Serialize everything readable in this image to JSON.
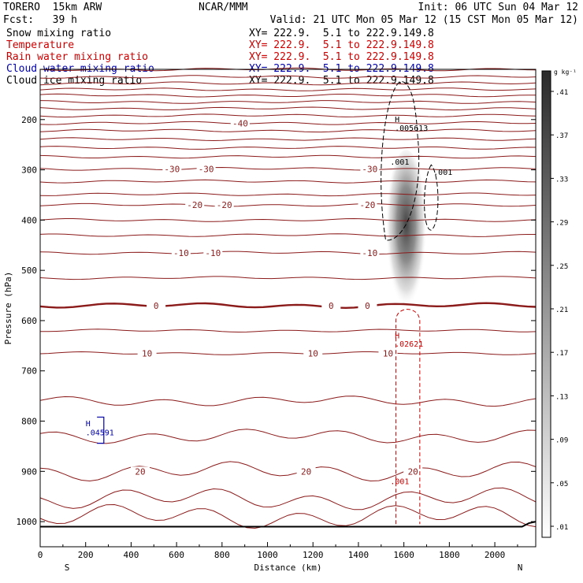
{
  "header": {
    "model": "TORERO  15km ARW",
    "center": "NCAR/MMM",
    "init": "Init: 06 UTC Sun 04 Mar 12",
    "fcst": "Fcst:   39 h",
    "valid": "Valid: 21 UTC Mon 05 Mar 12 (15 CST Mon 05 Mar 12)"
  },
  "fields": [
    {
      "name": "Snow mixing ratio",
      "xy": "XY= 222.9.  5.1 to 222.9.149.8",
      "color": "#000000"
    },
    {
      "name": "Temperature",
      "xy": "XY= 222.9.  5.1 to 222.9.149.8",
      "color": "#cc0000"
    },
    {
      "name": "Rain water mixing ratio",
      "xy": "XY= 222.9.  5.1 to 222.9.149.8",
      "color": "#cc0000"
    },
    {
      "name": "Cloud water mixing ratio",
      "xy": "XY= 222.9.  5.1 to 222.9.149.8",
      "color": "#0000aa"
    },
    {
      "name": "Cloud ice mixing ratio",
      "xy": "XY= 222.9.  5.1 to 222.9.149.8",
      "color": "#000000"
    }
  ],
  "chart_data": {
    "type": "line",
    "xlabel": "Distance (km)",
    "ylabel": "Pressure (hPa)",
    "xlim": [
      0,
      2180
    ],
    "ylim": [
      1050,
      100
    ],
    "xticks": [
      0,
      200,
      400,
      600,
      800,
      1000,
      1200,
      1400,
      1600,
      1800,
      2000
    ],
    "yticks": [
      200,
      300,
      400,
      500,
      600,
      700,
      800,
      900,
      1000
    ],
    "x_end_labels": {
      "left": "S",
      "right": "N"
    },
    "colorbar": {
      "unit": "g kg⁻¹",
      "ticks": [
        ".01",
        ".05",
        ".09",
        ".13",
        ".17",
        ".21",
        ".25",
        ".29",
        ".33",
        ".37",
        ".41"
      ]
    },
    "snow_core": {
      "x": 1610,
      "p_top": 260,
      "p_bottom": 590
    },
    "temperature_contours": {
      "color": "#8b1a1a",
      "zero_isotherm_p": 570,
      "levels": [
        {
          "p": 100
        },
        {
          "p": 115
        },
        {
          "p": 128
        },
        {
          "p": 140
        },
        {
          "p": 152
        },
        {
          "p": 165
        },
        {
          "p": 178
        },
        {
          "p": 192
        },
        {
          "p": 207,
          "label": "-40",
          "label_x": [
            880
          ]
        },
        {
          "p": 222
        },
        {
          "p": 239
        },
        {
          "p": 256
        },
        {
          "p": 274
        },
        {
          "p": 298,
          "label": "-30",
          "label_x": [
            580,
            730,
            1450
          ]
        },
        {
          "p": 323
        },
        {
          "p": 349
        },
        {
          "p": 370,
          "label": "-20",
          "label_x": [
            680,
            810,
            1440
          ]
        },
        {
          "p": 400
        },
        {
          "p": 430
        },
        {
          "p": 465,
          "label": "-10",
          "label_x": [
            620,
            760,
            1450
          ]
        },
        {
          "p": 515
        },
        {
          "p": 570,
          "label": "0",
          "label_x": [
            510,
            1280,
            1440
          ],
          "bold": true
        },
        {
          "p": 620
        },
        {
          "p": 665,
          "label": "10",
          "label_x": [
            470,
            1200,
            1530
          ]
        },
        {
          "p": 760
        },
        {
          "p": 830
        },
        {
          "p": 900,
          "label": "20",
          "label_x": [
            440,
            1170,
            1640
          ]
        },
        {
          "p": 955
        },
        {
          "p": 990
        }
      ]
    },
    "annotations": [
      {
        "text": "H",
        "x": 1560,
        "p": 205,
        "color": "#000000"
      },
      {
        "text": ".005613",
        "x": 1560,
        "p": 222,
        "color": "#000000"
      },
      {
        "text": ".001",
        "x": 1540,
        "p": 290,
        "color": "#000000"
      },
      {
        "text": ".001",
        "x": 1730,
        "p": 310,
        "color": "#000000"
      },
      {
        "text": "H",
        "x": 1560,
        "p": 635,
        "color": "#cc0000"
      },
      {
        "text": ".02621",
        "x": 1560,
        "p": 652,
        "color": "#cc0000"
      },
      {
        "text": ".001",
        "x": 1540,
        "p": 925,
        "color": "#cc0000"
      },
      {
        "text": "H",
        "x": 200,
        "p": 810,
        "color": "#0000aa"
      },
      {
        "text": ".04591",
        "x": 200,
        "p": 828,
        "color": "#0000aa"
      }
    ]
  }
}
